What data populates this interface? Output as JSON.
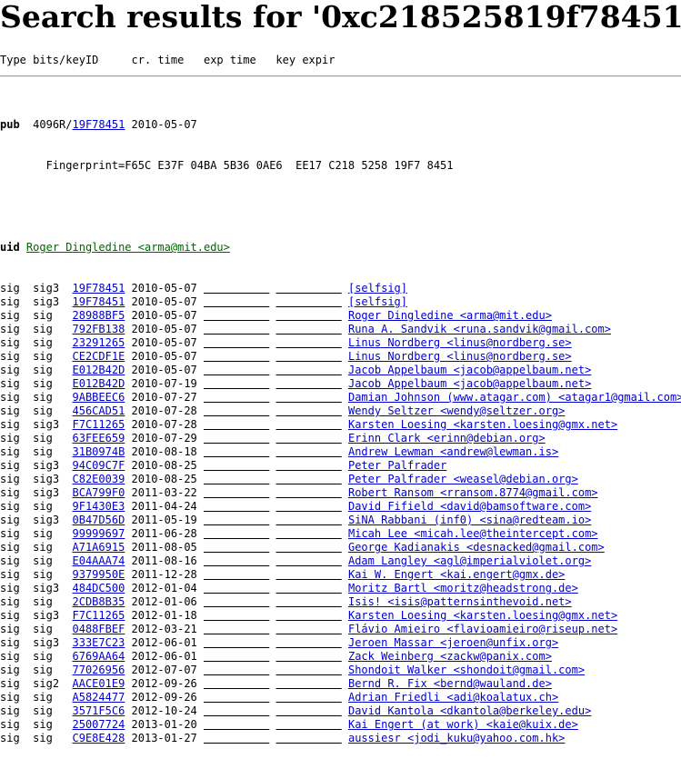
{
  "title": "Search results for '0xc218525819f78451'",
  "column_header": "Type bits/keyID     cr. time   exp time   key expir",
  "pub": {
    "type": "pub",
    "bits_keyid_prefix": "4096R/",
    "keyid": "19F78451",
    "date": "2010-05-07",
    "fingerprint": "       Fingerprint=F65C E37F 04BA 5B36 0AE6  EE17 C218 5258 19F7 8451"
  },
  "uid": {
    "type": "uid",
    "text": "Roger Dingledine <arma@mit.edu>"
  },
  "sigs": [
    {
      "type": "sig",
      "sub": "sig3",
      "keyid": "19F78451",
      "date": "2010-05-07",
      "uid": "[selfsig]"
    },
    {
      "type": "sig",
      "sub": "sig3",
      "keyid": "19F78451",
      "date": "2010-05-07",
      "uid": "[selfsig]"
    },
    {
      "type": "sig",
      "sub": "sig ",
      "keyid": "28988BF5",
      "date": "2010-05-07",
      "uid": "Roger Dingledine <arma@mit.edu>"
    },
    {
      "type": "sig",
      "sub": "sig ",
      "keyid": "792FB138",
      "date": "2010-05-07",
      "uid": "Runa A. Sandvik <runa.sandvik@gmail.com>"
    },
    {
      "type": "sig",
      "sub": "sig ",
      "keyid": "23291265",
      "date": "2010-05-07",
      "uid": "Linus Nordberg <linus@nordberg.se>"
    },
    {
      "type": "sig",
      "sub": "sig ",
      "keyid": "CE2CDF1E",
      "date": "2010-05-07",
      "uid": "Linus Nordberg <linus@nordberg.se>"
    },
    {
      "type": "sig",
      "sub": "sig ",
      "keyid": "E012B42D",
      "date": "2010-05-07",
      "uid": "Jacob Appelbaum <jacob@appelbaum.net>"
    },
    {
      "type": "sig",
      "sub": "sig ",
      "keyid": "E012B42D",
      "date": "2010-07-19",
      "uid": "Jacob Appelbaum <jacob@appelbaum.net>"
    },
    {
      "type": "sig",
      "sub": "sig ",
      "keyid": "9ABBEEC6",
      "date": "2010-07-27",
      "uid": "Damian Johnson (www.atagar.com) <atagar1@gmail.com>"
    },
    {
      "type": "sig",
      "sub": "sig ",
      "keyid": "456CAD51",
      "date": "2010-07-28",
      "uid": "Wendy Seltzer <wendy@seltzer.org>"
    },
    {
      "type": "sig",
      "sub": "sig3",
      "keyid": "F7C11265",
      "date": "2010-07-28",
      "uid": "Karsten Loesing <karsten.loesing@gmx.net>"
    },
    {
      "type": "sig",
      "sub": "sig ",
      "keyid": "63FEE659",
      "date": "2010-07-29",
      "uid": "Erinn Clark <erinn@debian.org>"
    },
    {
      "type": "sig",
      "sub": "sig ",
      "keyid": "31B0974B",
      "date": "2010-08-18",
      "uid": "Andrew Lewman <andrew@lewman.is>"
    },
    {
      "type": "sig",
      "sub": "sig3",
      "keyid": "94C09C7F",
      "date": "2010-08-25",
      "uid": "Peter Palfrader"
    },
    {
      "type": "sig",
      "sub": "sig3",
      "keyid": "C82E0039",
      "date": "2010-08-25",
      "uid": "Peter Palfrader <weasel@debian.org>"
    },
    {
      "type": "sig",
      "sub": "sig3",
      "keyid": "BCA799F0",
      "date": "2011-03-22",
      "uid": "Robert Ransom <rransom.8774@gmail.com>"
    },
    {
      "type": "sig",
      "sub": "sig ",
      "keyid": "9F1430E3",
      "date": "2011-04-24",
      "uid": "David Fifield <david@bamsoftware.com>"
    },
    {
      "type": "sig",
      "sub": "sig3",
      "keyid": "0B47D56D",
      "date": "2011-05-19",
      "uid": "SiNA Rabbani (inf0) <sina@redteam.io>"
    },
    {
      "type": "sig",
      "sub": "sig ",
      "keyid": "99999697",
      "date": "2011-06-28",
      "uid": "Micah Lee <micah.lee@theintercept.com>"
    },
    {
      "type": "sig",
      "sub": "sig ",
      "keyid": "A71A6915",
      "date": "2011-08-05",
      "uid": "George Kadianakis <desnacked@gmail.com>"
    },
    {
      "type": "sig",
      "sub": "sig ",
      "keyid": "E04AAA74",
      "date": "2011-08-16",
      "uid": "Adam Langley <agl@imperialviolet.org>"
    },
    {
      "type": "sig",
      "sub": "sig ",
      "keyid": "9379950E",
      "date": "2011-12-28",
      "uid": "Kai W. Engert <kai.engert@gmx.de>"
    },
    {
      "type": "sig",
      "sub": "sig3",
      "keyid": "484DC500",
      "date": "2012-01-04",
      "uid": "Moritz Bartl <moritz@headstrong.de>"
    },
    {
      "type": "sig",
      "sub": "sig ",
      "keyid": "2CDB8B35",
      "date": "2012-01-06",
      "uid": "Isis! <isis@patternsinthevoid.net>"
    },
    {
      "type": "sig",
      "sub": "sig3",
      "keyid": "F7C11265",
      "date": "2012-01-18",
      "uid": "Karsten Loesing <karsten.loesing@gmx.net>"
    },
    {
      "type": "sig",
      "sub": "sig ",
      "keyid": "0488FBEF",
      "date": "2012-03-21",
      "uid": "Flávio Amieiro <flavioamieiro@riseup.net>"
    },
    {
      "type": "sig",
      "sub": "sig3",
      "keyid": "333E7C23",
      "date": "2012-06-01",
      "uid": "Jeroen Massar <jeroen@unfix.org>"
    },
    {
      "type": "sig",
      "sub": "sig ",
      "keyid": "6769AA64",
      "date": "2012-06-01",
      "uid": "Zack Weinberg <zackw@panix.com>"
    },
    {
      "type": "sig",
      "sub": "sig ",
      "keyid": "77026956",
      "date": "2012-07-07",
      "uid": "Shondoit Walker <shondoit@gmail.com>"
    },
    {
      "type": "sig",
      "sub": "sig2",
      "keyid": "AACE01E9",
      "date": "2012-09-26",
      "uid": "Bernd R. Fix <bernd@wauland.de>"
    },
    {
      "type": "sig",
      "sub": "sig ",
      "keyid": "A5824477",
      "date": "2012-09-26",
      "uid": "Adrian Friedli <adi@koalatux.ch>"
    },
    {
      "type": "sig",
      "sub": "sig ",
      "keyid": "3571F5C6",
      "date": "2012-10-24",
      "uid": "David Kantola <dkantola@berkeley.edu>"
    },
    {
      "type": "sig",
      "sub": "sig ",
      "keyid": "25007724",
      "date": "2013-01-20",
      "uid": "Kai Engert (at work) <kaie@kuix.de>"
    },
    {
      "type": "sig",
      "sub": "sig ",
      "keyid": "C9E8E428",
      "date": "2013-01-27",
      "uid": "aussiesr <jodi_kuku@yahoo.com.hk>"
    }
  ]
}
